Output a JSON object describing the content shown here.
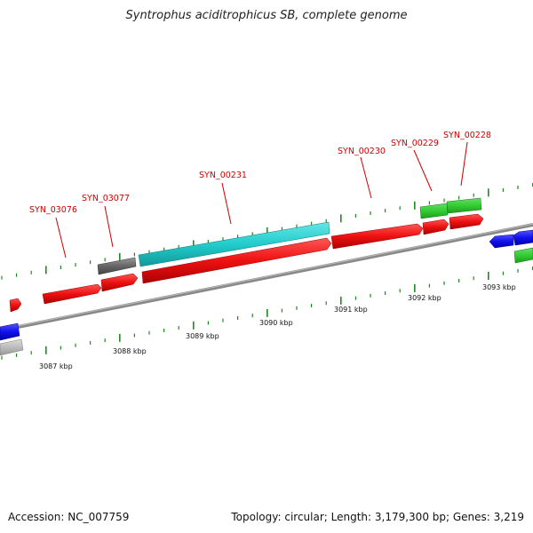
{
  "title": "Syntrophus aciditrophicus SB, complete genome",
  "footer": {
    "accession": "Accession: NC_007759",
    "summary": "Topology: circular; Length: 3,179,300 bp; Genes: 3,219"
  },
  "colors": {
    "forward_cds": "#ee1111",
    "gene_cyan": "#22cccc",
    "gene_green": "#33cc33",
    "gene_blue": "#1111ee",
    "gene_gray": "#666666",
    "gene_lightgray": "#bbbbbb",
    "backbone": "#888888",
    "tick": "#228822",
    "label": "#cc0000"
  },
  "scale_labels": [
    "3087 kbp",
    "3088 kbp",
    "3089 kbp",
    "3090 kbp",
    "3091 kbp",
    "3092 kbp",
    "3093 kbp"
  ],
  "gene_labels": [
    "SYN_03076",
    "SYN_03077",
    "SYN_00231",
    "SYN_00230",
    "SYN_00229",
    "SYN_00228"
  ]
}
